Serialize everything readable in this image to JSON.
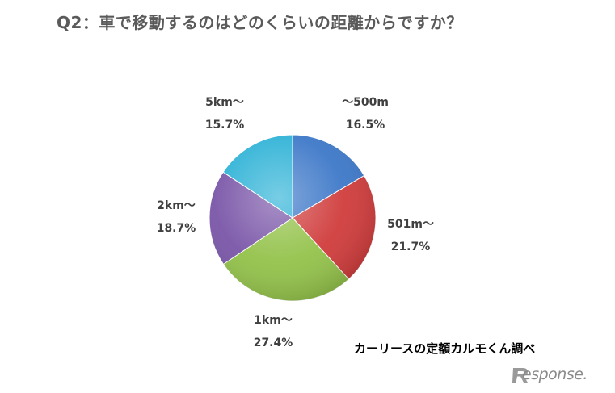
{
  "title": "Q2：車で移動するのはどのくらいの距離からですか？",
  "source": "カーリースの定額カルモくん調べ",
  "logo_text": "esponse.",
  "logo_icon": "response-r-logo",
  "chart_data": {
    "type": "pie",
    "title": "Q2：車で移動するのはどのくらいの距離からですか？",
    "slices": [
      {
        "label": "～500m",
        "value": 16.5,
        "value_label": "16.5%",
        "color": "#3d78c8"
      },
      {
        "label": "501m～",
        "value": 21.7,
        "value_label": "21.7%",
        "color": "#d03c3c"
      },
      {
        "label": "1km～",
        "value": 27.4,
        "value_label": "27.4%",
        "color": "#93c24a"
      },
      {
        "label": "2km～",
        "value": 18.7,
        "value_label": "18.7%",
        "color": "#7a56a8"
      },
      {
        "label": "5km～",
        "value": 15.7,
        "value_label": "15.7%",
        "color": "#2eb2d6"
      }
    ],
    "start": "12 o'clock",
    "direction": "clockwise",
    "legend": "none"
  }
}
